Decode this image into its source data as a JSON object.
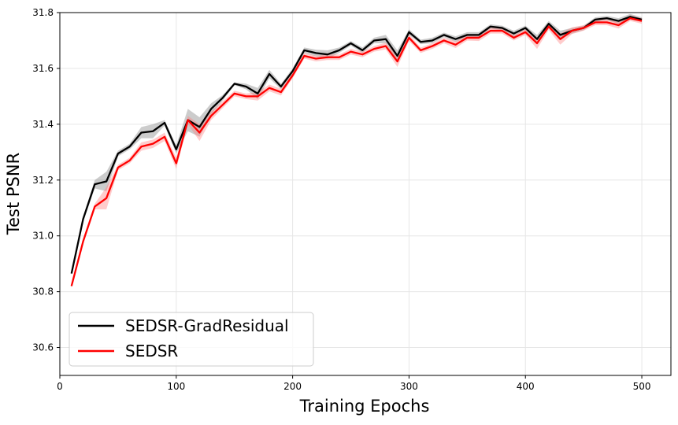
{
  "chart_data": {
    "type": "line",
    "title": "",
    "xlabel": "Training Epochs",
    "ylabel": "Test PSNR",
    "xlim": [
      0,
      525
    ],
    "ylim": [
      30.5,
      31.8
    ],
    "xticks": [
      0,
      100,
      200,
      300,
      400,
      500
    ],
    "yticks": [
      30.6,
      30.8,
      31.0,
      31.2,
      31.4,
      31.6,
      31.8
    ],
    "grid": true,
    "legend_position": "lower-left",
    "x": [
      10,
      20,
      30,
      40,
      50,
      60,
      70,
      80,
      90,
      100,
      110,
      120,
      130,
      140,
      150,
      160,
      170,
      180,
      190,
      200,
      210,
      220,
      230,
      240,
      250,
      260,
      270,
      280,
      290,
      300,
      310,
      320,
      330,
      340,
      350,
      360,
      370,
      380,
      390,
      400,
      410,
      420,
      430,
      440,
      450,
      460,
      470,
      480,
      490,
      500
    ],
    "series": [
      {
        "name": "SEDSR-GradResidual",
        "color": "#000000",
        "band_color": "#808080",
        "values": [
          30.865,
          31.06,
          31.185,
          31.195,
          31.295,
          31.32,
          31.37,
          31.375,
          31.405,
          31.31,
          31.415,
          31.39,
          31.455,
          31.495,
          31.545,
          31.535,
          31.51,
          31.58,
          31.535,
          31.59,
          31.665,
          31.655,
          31.65,
          31.665,
          31.69,
          31.665,
          31.7,
          31.705,
          31.645,
          31.73,
          31.695,
          31.7,
          31.72,
          31.705,
          31.72,
          31.72,
          31.75,
          31.745,
          31.725,
          31.745,
          31.705,
          31.76,
          31.72,
          31.735,
          31.745,
          31.775,
          31.78,
          31.77,
          31.785,
          31.775
        ],
        "band": [
          0.005,
          0.01,
          0.015,
          0.035,
          0.01,
          0.01,
          0.02,
          0.025,
          0.01,
          0.015,
          0.04,
          0.035,
          0.02,
          0.01,
          0.005,
          0.01,
          0.02,
          0.015,
          0.01,
          0.01,
          0.01,
          0.012,
          0.015,
          0.01,
          0.008,
          0.01,
          0.01,
          0.015,
          0.02,
          0.01,
          0.008,
          0.01,
          0.008,
          0.01,
          0.01,
          0.01,
          0.008,
          0.008,
          0.01,
          0.008,
          0.015,
          0.01,
          0.015,
          0.01,
          0.008,
          0.008,
          0.008,
          0.01,
          0.01,
          0.008
        ]
      },
      {
        "name": "SEDSR",
        "color": "#ff0000",
        "band_color": "#ff8080",
        "values": [
          30.82,
          30.98,
          31.105,
          31.135,
          31.245,
          31.27,
          31.32,
          31.33,
          31.355,
          31.26,
          31.415,
          31.37,
          31.43,
          31.47,
          31.51,
          31.5,
          31.5,
          31.53,
          31.515,
          31.575,
          31.645,
          31.635,
          31.64,
          31.64,
          31.66,
          31.65,
          31.67,
          31.68,
          31.625,
          31.71,
          31.665,
          31.68,
          31.7,
          31.685,
          31.71,
          31.71,
          31.735,
          31.735,
          31.71,
          31.73,
          31.69,
          31.75,
          31.705,
          31.735,
          31.745,
          31.765,
          31.765,
          31.755,
          31.78,
          31.77
        ],
        "band": [
          0.005,
          0.01,
          0.01,
          0.04,
          0.01,
          0.01,
          0.015,
          0.015,
          0.015,
          0.02,
          0.015,
          0.03,
          0.015,
          0.012,
          0.01,
          0.01,
          0.015,
          0.012,
          0.012,
          0.01,
          0.01,
          0.01,
          0.01,
          0.01,
          0.01,
          0.01,
          0.01,
          0.012,
          0.02,
          0.012,
          0.01,
          0.01,
          0.01,
          0.012,
          0.01,
          0.012,
          0.01,
          0.01,
          0.01,
          0.01,
          0.02,
          0.012,
          0.02,
          0.012,
          0.01,
          0.01,
          0.01,
          0.012,
          0.01,
          0.01
        ]
      }
    ]
  }
}
